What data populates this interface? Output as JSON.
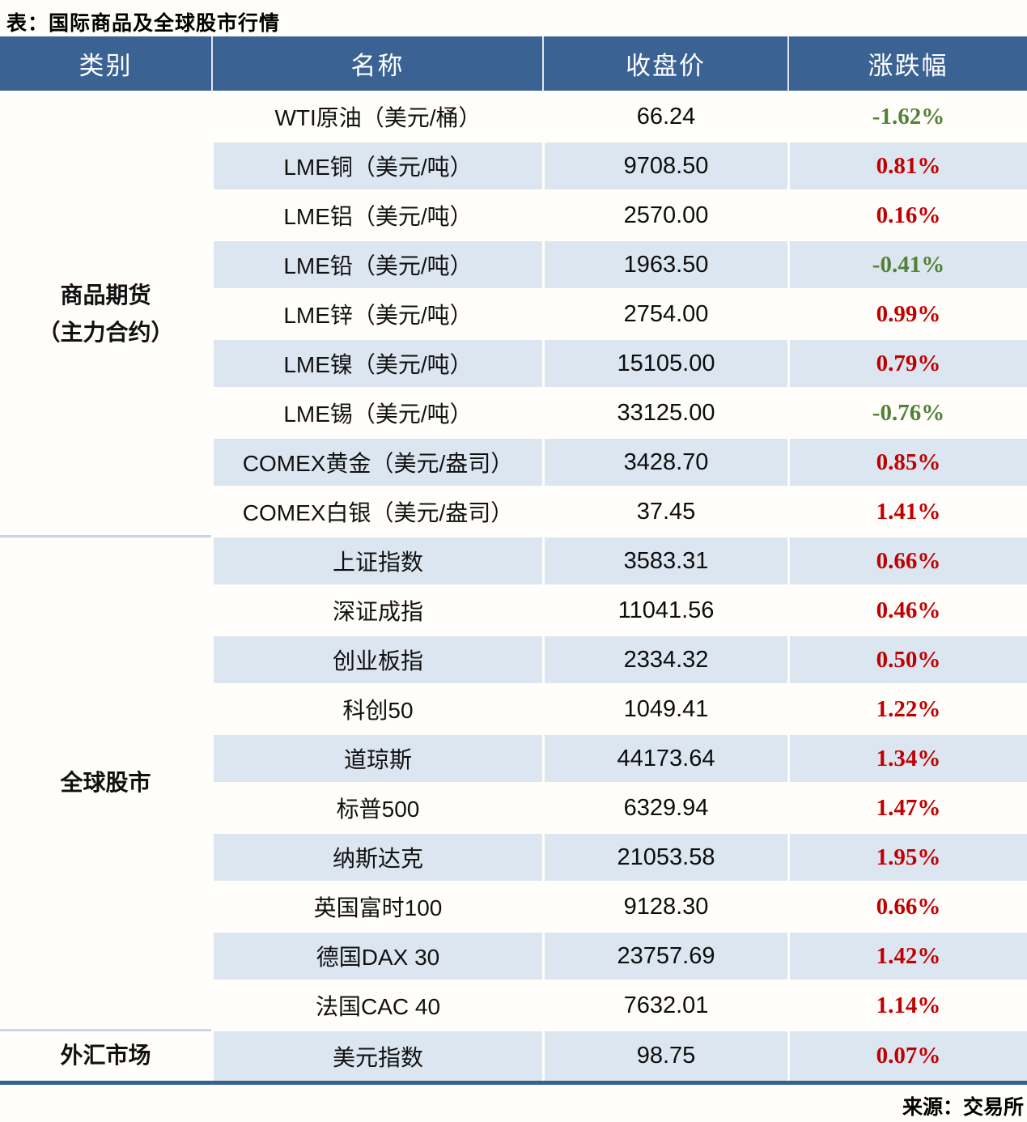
{
  "title": "表：国际商品及全球股市行情",
  "source": "来源：交易所",
  "colors": {
    "header_bg": "#3A6394",
    "stripe_bg": "#DCE6F1",
    "up": "#C00000",
    "down": "#538135",
    "table_bottom_border": "#35618F",
    "section_divider": "#C7D5E4"
  },
  "table": {
    "columns": [
      "类别",
      "名称",
      "收盘价",
      "涨跌幅"
    ],
    "sections": [
      {
        "category": "商品期货\n（主力合约）",
        "rows": [
          {
            "name": "WTI原油（美元/桶）",
            "close": "66.24",
            "change": "-1.62%",
            "dir": "down"
          },
          {
            "name": "LME铜（美元/吨）",
            "close": "9708.50",
            "change": "0.81%",
            "dir": "up"
          },
          {
            "name": "LME铝（美元/吨）",
            "close": "2570.00",
            "change": "0.16%",
            "dir": "up"
          },
          {
            "name": "LME铅（美元/吨）",
            "close": "1963.50",
            "change": "-0.41%",
            "dir": "down"
          },
          {
            "name": "LME锌（美元/吨）",
            "close": "2754.00",
            "change": "0.99%",
            "dir": "up"
          },
          {
            "name": "LME镍（美元/吨）",
            "close": "15105.00",
            "change": "0.79%",
            "dir": "up"
          },
          {
            "name": "LME锡（美元/吨）",
            "close": "33125.00",
            "change": "-0.76%",
            "dir": "down"
          },
          {
            "name": "COMEX黄金（美元/盎司）",
            "close": "3428.70",
            "change": "0.85%",
            "dir": "up"
          },
          {
            "name": "COMEX白银（美元/盎司）",
            "close": "37.45",
            "change": "1.41%",
            "dir": "up"
          }
        ]
      },
      {
        "category": "全球股市",
        "rows": [
          {
            "name": "上证指数",
            "close": "3583.31",
            "change": "0.66%",
            "dir": "up"
          },
          {
            "name": "深证成指",
            "close": "11041.56",
            "change": "0.46%",
            "dir": "up"
          },
          {
            "name": "创业板指",
            "close": "2334.32",
            "change": "0.50%",
            "dir": "up"
          },
          {
            "name": "科创50",
            "close": "1049.41",
            "change": "1.22%",
            "dir": "up"
          },
          {
            "name": "道琼斯",
            "close": "44173.64",
            "change": "1.34%",
            "dir": "up"
          },
          {
            "name": "标普500",
            "close": "6329.94",
            "change": "1.47%",
            "dir": "up"
          },
          {
            "name": "纳斯达克",
            "close": "21053.58",
            "change": "1.95%",
            "dir": "up"
          },
          {
            "name": "英国富时100",
            "close": "9128.30",
            "change": "0.66%",
            "dir": "up"
          },
          {
            "name": "德国DAX 30",
            "close": "23757.69",
            "change": "1.42%",
            "dir": "up"
          },
          {
            "name": "法国CAC 40",
            "close": "7632.01",
            "change": "1.14%",
            "dir": "up"
          }
        ]
      },
      {
        "category": "外汇市场",
        "rows": [
          {
            "name": "美元指数",
            "close": "98.75",
            "change": "0.07%",
            "dir": "up"
          }
        ]
      }
    ]
  }
}
